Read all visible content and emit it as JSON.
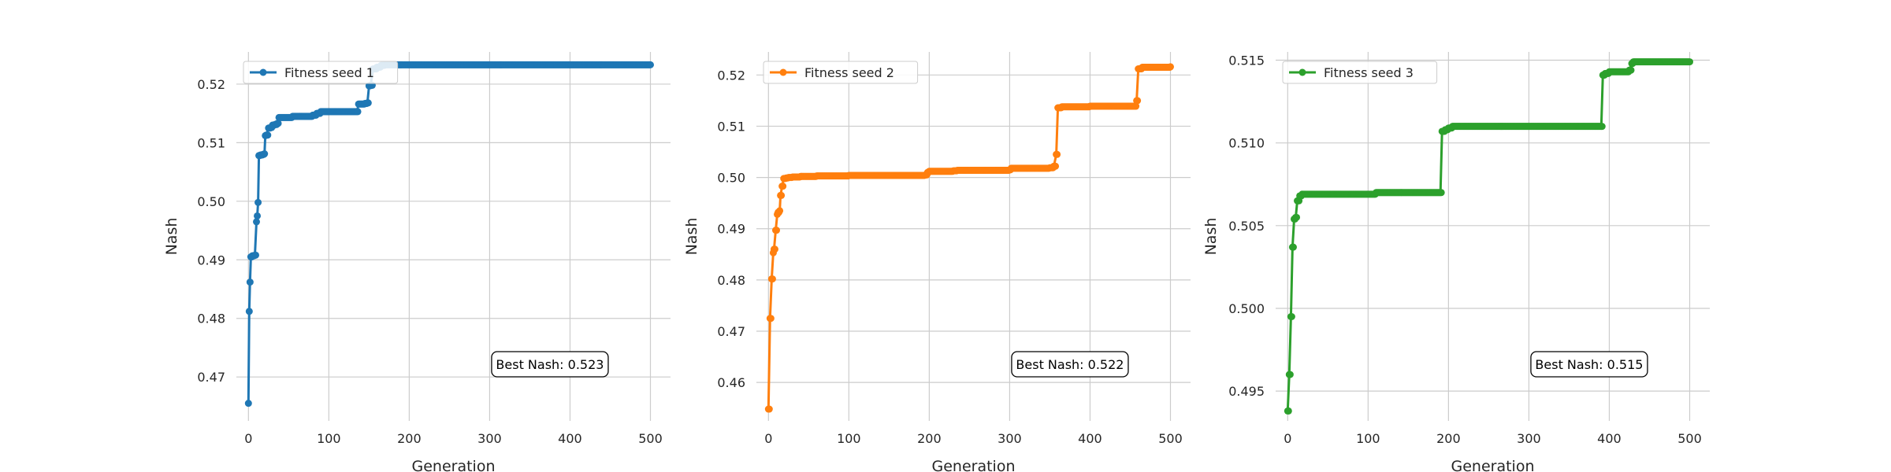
{
  "chart_data": [
    {
      "type": "line",
      "xlabel": "Generation",
      "ylabel": "Nash",
      "xlim": [
        -15,
        525
      ],
      "ylim": [
        0.4625,
        0.5255
      ],
      "xticks": [
        0,
        100,
        200,
        300,
        400,
        500
      ],
      "yticks": [
        0.47,
        0.48,
        0.49,
        0.5,
        0.51,
        0.52
      ],
      "tick_decimals": 2,
      "grid": true,
      "legend_position": "top-left",
      "color": "#1f77b4",
      "series": [
        {
          "name": "Fitness seed 1",
          "points": [
            [
              0,
              0.4655
            ],
            [
              1,
              0.4812
            ],
            [
              2,
              0.4862
            ],
            [
              3,
              0.4905
            ],
            [
              5,
              0.4907
            ],
            [
              8,
              0.4908
            ],
            [
              10,
              0.4965
            ],
            [
              11,
              0.4975
            ],
            [
              12,
              0.4998
            ],
            [
              13,
              0.5078
            ],
            [
              15,
              0.5079
            ],
            [
              18,
              0.508
            ],
            [
              20,
              0.5081
            ],
            [
              21,
              0.5112
            ],
            [
              22,
              0.5113
            ],
            [
              25,
              0.5125
            ],
            [
              28,
              0.5126
            ],
            [
              30,
              0.513
            ],
            [
              33,
              0.5131
            ],
            [
              36,
              0.5133
            ],
            [
              38,
              0.5143
            ],
            [
              55,
              0.5145
            ],
            [
              70,
              0.5145
            ],
            [
              80,
              0.5147
            ],
            [
              85,
              0.515
            ],
            [
              90,
              0.5153
            ],
            [
              135,
              0.5153
            ],
            [
              137,
              0.5166
            ],
            [
              140,
              0.5166
            ],
            [
              145,
              0.5167
            ],
            [
              148,
              0.5168
            ],
            [
              150,
              0.5197
            ],
            [
              152,
              0.5198
            ],
            [
              155,
              0.5226
            ],
            [
              160,
              0.5229
            ],
            [
              165,
              0.5232
            ],
            [
              170,
              0.5233
            ],
            [
              200,
              0.5233
            ],
            [
              300,
              0.5233
            ],
            [
              400,
              0.5233
            ],
            [
              500,
              0.5233
            ]
          ]
        }
      ],
      "annotation": "Best Nash: 0.523"
    },
    {
      "type": "line",
      "xlabel": "Generation",
      "ylabel": "Nash",
      "xlim": [
        -15,
        525
      ],
      "ylim": [
        0.4525,
        0.5245
      ],
      "xticks": [
        0,
        100,
        200,
        300,
        400,
        500
      ],
      "yticks": [
        0.46,
        0.47,
        0.48,
        0.49,
        0.5,
        0.51,
        0.52
      ],
      "tick_decimals": 2,
      "grid": true,
      "legend_position": "top-left",
      "color": "#ff7f0e",
      "series": [
        {
          "name": "Fitness seed 2",
          "points": [
            [
              0,
              0.4548
            ],
            [
              2,
              0.4725
            ],
            [
              4,
              0.4802
            ],
            [
              6,
              0.4853
            ],
            [
              7,
              0.486
            ],
            [
              9,
              0.4897
            ],
            [
              11,
              0.4928
            ],
            [
              12,
              0.4932
            ],
            [
              14,
              0.4935
            ],
            [
              15,
              0.4965
            ],
            [
              17,
              0.4983
            ],
            [
              19,
              0.4998
            ],
            [
              22,
              0.4999
            ],
            [
              25,
              0.5
            ],
            [
              30,
              0.5001
            ],
            [
              40,
              0.5002
            ],
            [
              60,
              0.5003
            ],
            [
              100,
              0.5004
            ],
            [
              150,
              0.5004
            ],
            [
              195,
              0.5005
            ],
            [
              198,
              0.501
            ],
            [
              200,
              0.5012
            ],
            [
              230,
              0.5013
            ],
            [
              235,
              0.5014
            ],
            [
              300,
              0.5015
            ],
            [
              302,
              0.5018
            ],
            [
              350,
              0.5019
            ],
            [
              355,
              0.5022
            ],
            [
              358,
              0.5045
            ],
            [
              360,
              0.5136
            ],
            [
              365,
              0.5138
            ],
            [
              400,
              0.5139
            ],
            [
              455,
              0.5139
            ],
            [
              458,
              0.515
            ],
            [
              460,
              0.5212
            ],
            [
              465,
              0.5215
            ],
            [
              500,
              0.5216
            ]
          ]
        }
      ],
      "annotation": "Best Nash: 0.522"
    },
    {
      "type": "line",
      "xlabel": "Generation",
      "ylabel": "Nash",
      "xlim": [
        -15,
        525
      ],
      "ylim": [
        0.4932,
        0.5155
      ],
      "xticks": [
        0,
        100,
        200,
        300,
        400,
        500
      ],
      "yticks": [
        0.495,
        0.5,
        0.505,
        0.51,
        0.515
      ],
      "tick_decimals": 3,
      "grid": true,
      "legend_position": "top-left",
      "color": "#2ca02c",
      "series": [
        {
          "name": "Fitness seed 3",
          "points": [
            [
              0,
              0.4938
            ],
            [
              2,
              0.496
            ],
            [
              4,
              0.4995
            ],
            [
              6,
              0.5037
            ],
            [
              8,
              0.5054
            ],
            [
              10,
              0.5055
            ],
            [
              12,
              0.5065
            ],
            [
              15,
              0.5068
            ],
            [
              18,
              0.5069
            ],
            [
              20,
              0.5069
            ],
            [
              50,
              0.5069
            ],
            [
              100,
              0.5069
            ],
            [
              110,
              0.507
            ],
            [
              150,
              0.507
            ],
            [
              190,
              0.507
            ],
            [
              192,
              0.5107
            ],
            [
              196,
              0.5108
            ],
            [
              200,
              0.5109
            ],
            [
              205,
              0.511
            ],
            [
              300,
              0.511
            ],
            [
              385,
              0.511
            ],
            [
              390,
              0.511
            ],
            [
              392,
              0.5141
            ],
            [
              395,
              0.5142
            ],
            [
              400,
              0.5143
            ],
            [
              420,
              0.5143
            ],
            [
              425,
              0.5144
            ],
            [
              428,
              0.5148
            ],
            [
              430,
              0.5149
            ],
            [
              460,
              0.5149
            ],
            [
              500,
              0.5149
            ]
          ]
        }
      ],
      "annotation": "Best Nash: 0.515"
    }
  ]
}
